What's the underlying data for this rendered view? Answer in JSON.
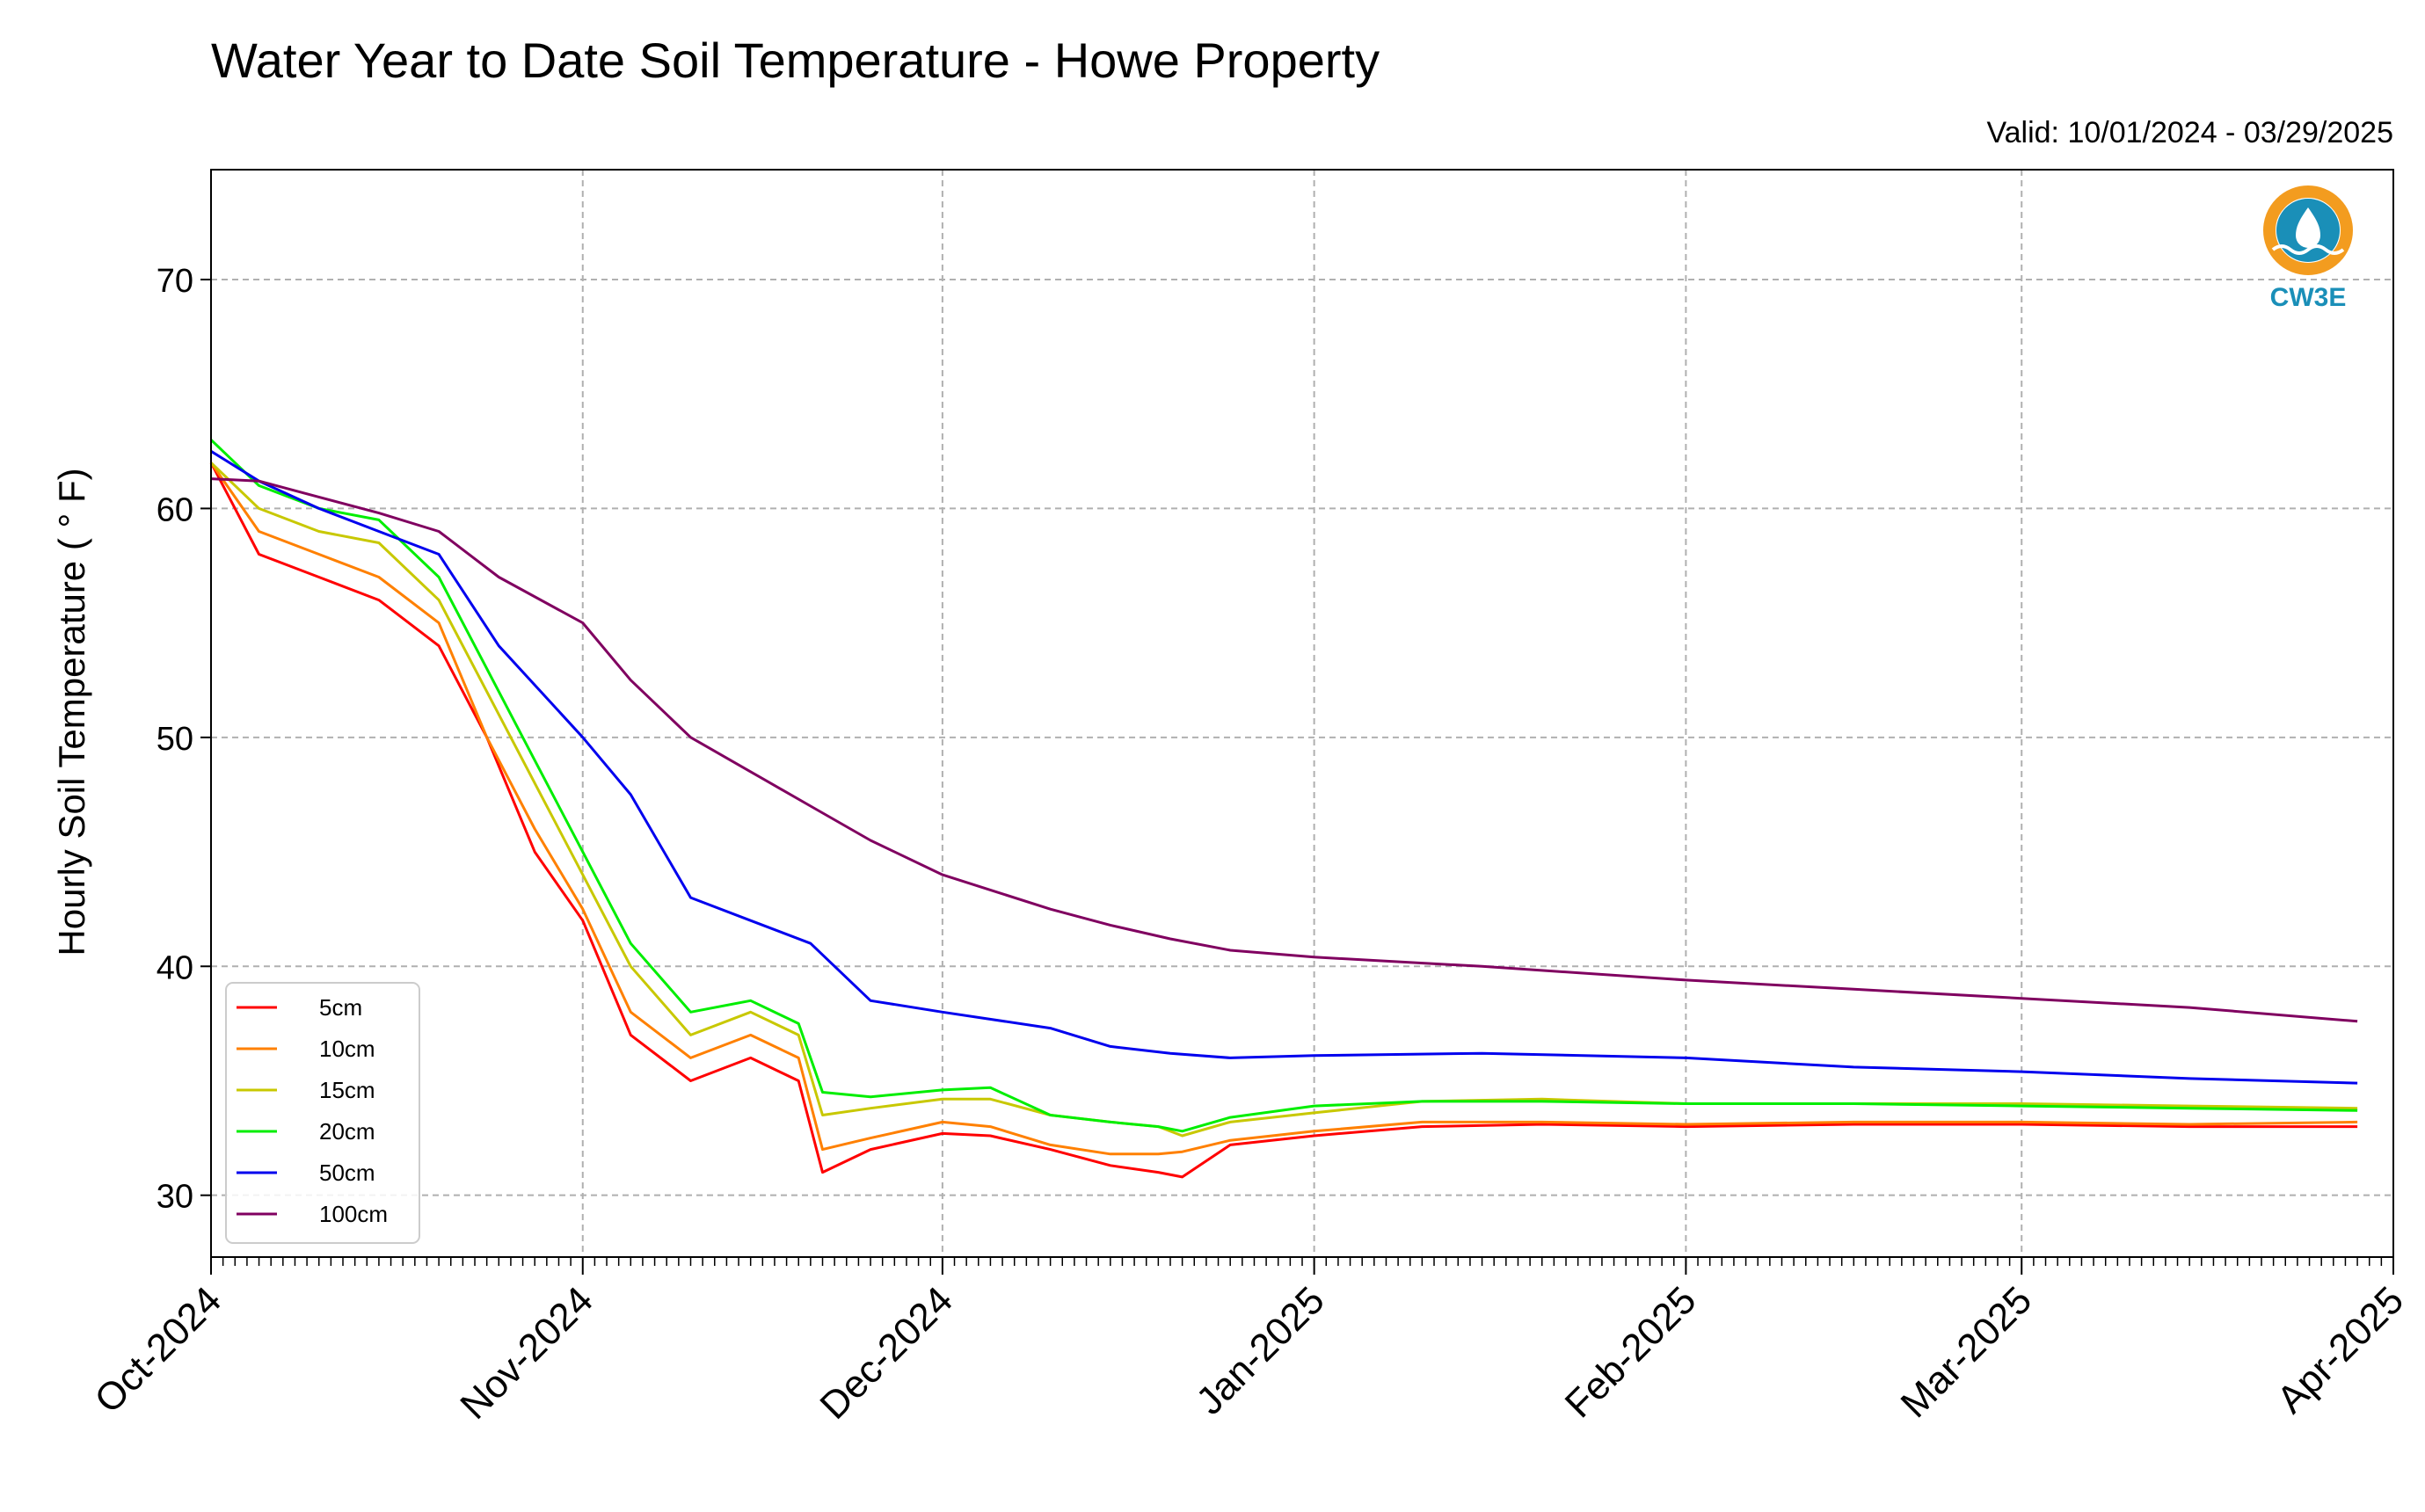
{
  "chart_data": {
    "type": "line",
    "title": "Water Year to Date Soil Temperature - Howe Property",
    "subtitle": "Valid: 10/01/2024 - 03/29/2025",
    "ylabel": "Hourly Soil Temperature ( ° F)",
    "xlabel": "",
    "ylim": [
      27.3,
      74.8
    ],
    "yticks": [
      30,
      40,
      50,
      60,
      70
    ],
    "xlim": [
      "2024-10-01",
      "2025-04-01"
    ],
    "xticks": [
      {
        "date": "2024-10-01",
        "label": "Oct-2024"
      },
      {
        "date": "2024-11-01",
        "label": "Nov-2024"
      },
      {
        "date": "2024-12-01",
        "label": "Dec-2024"
      },
      {
        "date": "2025-01-01",
        "label": "Jan-2025"
      },
      {
        "date": "2025-02-01",
        "label": "Feb-2025"
      },
      {
        "date": "2025-03-01",
        "label": "Mar-2025"
      },
      {
        "date": "2025-04-01",
        "label": "Apr-2025"
      }
    ],
    "grid": true,
    "legend_position": "bottom-left",
    "series": [
      {
        "name": "5cm",
        "color": "#ff0000",
        "x": [
          "2024-10-01",
          "2024-10-05",
          "2024-10-10",
          "2024-10-15",
          "2024-10-20",
          "2024-10-24",
          "2024-10-28",
          "2024-11-01",
          "2024-11-05",
          "2024-11-10",
          "2024-11-15",
          "2024-11-19",
          "2024-11-21",
          "2024-11-25",
          "2024-12-01",
          "2024-12-05",
          "2024-12-10",
          "2024-12-15",
          "2024-12-19",
          "2024-12-21",
          "2024-12-25",
          "2025-01-01",
          "2025-01-10",
          "2025-01-20",
          "2025-02-01",
          "2025-02-15",
          "2025-03-01",
          "2025-03-15",
          "2025-03-29"
        ],
        "y": [
          62,
          58,
          57,
          56,
          54,
          50,
          45,
          42,
          37,
          35,
          36,
          35,
          31,
          32,
          32.7,
          32.6,
          32,
          31.3,
          31,
          30.8,
          32.2,
          32.6,
          33.0,
          33.1,
          33.0,
          33.1,
          33.1,
          33.0,
          33.0
        ]
      },
      {
        "name": "10cm",
        "color": "#ff8000",
        "x": [
          "2024-10-01",
          "2024-10-05",
          "2024-10-10",
          "2024-10-15",
          "2024-10-20",
          "2024-10-24",
          "2024-10-28",
          "2024-11-01",
          "2024-11-05",
          "2024-11-10",
          "2024-11-15",
          "2024-11-19",
          "2024-11-21",
          "2024-11-25",
          "2024-12-01",
          "2024-12-05",
          "2024-12-10",
          "2024-12-15",
          "2024-12-19",
          "2024-12-21",
          "2024-12-25",
          "2025-01-01",
          "2025-01-10",
          "2025-01-20",
          "2025-02-01",
          "2025-02-15",
          "2025-03-01",
          "2025-03-15",
          "2025-03-29"
        ],
        "y": [
          62,
          59,
          58,
          57,
          55,
          50,
          46,
          42.5,
          38,
          36,
          37,
          36,
          32,
          32.5,
          33.2,
          33,
          32.2,
          31.8,
          31.8,
          31.9,
          32.4,
          32.8,
          33.2,
          33.2,
          33.1,
          33.2,
          33.2,
          33.1,
          33.2
        ]
      },
      {
        "name": "15cm",
        "color": "#c8c800",
        "x": [
          "2024-10-01",
          "2024-10-05",
          "2024-10-10",
          "2024-10-15",
          "2024-10-20",
          "2024-10-24",
          "2024-10-28",
          "2024-11-01",
          "2024-11-05",
          "2024-11-10",
          "2024-11-15",
          "2024-11-19",
          "2024-11-21",
          "2024-11-25",
          "2024-12-01",
          "2024-12-05",
          "2024-12-10",
          "2024-12-15",
          "2024-12-19",
          "2024-12-21",
          "2024-12-25",
          "2025-01-01",
          "2025-01-10",
          "2025-01-20",
          "2025-02-01",
          "2025-02-15",
          "2025-03-01",
          "2025-03-15",
          "2025-03-29"
        ],
        "y": [
          62,
          60,
          59,
          58.5,
          56,
          52,
          48,
          44,
          40,
          37,
          38,
          37,
          33.5,
          33.8,
          34.2,
          34.2,
          33.5,
          33.2,
          33.0,
          32.6,
          33.2,
          33.6,
          34.1,
          34.2,
          34.0,
          34.0,
          34.0,
          33.9,
          33.8
        ]
      },
      {
        "name": "20cm",
        "color": "#00ee00",
        "x": [
          "2024-10-01",
          "2024-10-05",
          "2024-10-10",
          "2024-10-15",
          "2024-10-20",
          "2024-10-24",
          "2024-10-28",
          "2024-11-01",
          "2024-11-05",
          "2024-11-10",
          "2024-11-15",
          "2024-11-19",
          "2024-11-21",
          "2024-11-25",
          "2024-12-01",
          "2024-12-05",
          "2024-12-10",
          "2024-12-15",
          "2024-12-19",
          "2024-12-21",
          "2024-12-25",
          "2025-01-01",
          "2025-01-10",
          "2025-01-20",
          "2025-02-01",
          "2025-02-15",
          "2025-03-01",
          "2025-03-15",
          "2025-03-29"
        ],
        "y": [
          63,
          61,
          60,
          59.5,
          57,
          53,
          49,
          45,
          41,
          38,
          38.5,
          37.5,
          34.5,
          34.3,
          34.6,
          34.7,
          33.5,
          33.2,
          33.0,
          32.8,
          33.4,
          33.9,
          34.1,
          34.1,
          34.0,
          34.0,
          33.9,
          33.8,
          33.7
        ]
      },
      {
        "name": "50cm",
        "color": "#0000ee",
        "x": [
          "2024-10-01",
          "2024-10-05",
          "2024-10-10",
          "2024-10-15",
          "2024-10-20",
          "2024-10-25",
          "2024-11-01",
          "2024-11-05",
          "2024-11-10",
          "2024-11-15",
          "2024-11-20",
          "2024-11-25",
          "2024-12-01",
          "2024-12-10",
          "2024-12-15",
          "2024-12-20",
          "2024-12-25",
          "2025-01-01",
          "2025-01-15",
          "2025-02-01",
          "2025-02-15",
          "2025-03-01",
          "2025-03-15",
          "2025-03-29"
        ],
        "y": [
          62.5,
          61.2,
          60,
          59,
          58,
          54,
          50,
          47.5,
          43,
          42,
          41,
          38.5,
          38,
          37.3,
          36.5,
          36.2,
          36.0,
          36.1,
          36.2,
          36.0,
          35.6,
          35.4,
          35.1,
          34.9
        ]
      },
      {
        "name": "100cm",
        "color": "#800060",
        "x": [
          "2024-10-01",
          "2024-10-05",
          "2024-10-10",
          "2024-10-15",
          "2024-10-20",
          "2024-10-25",
          "2024-11-01",
          "2024-11-05",
          "2024-11-10",
          "2024-11-15",
          "2024-11-20",
          "2024-11-25",
          "2024-12-01",
          "2024-12-10",
          "2024-12-15",
          "2024-12-20",
          "2024-12-25",
          "2025-01-01",
          "2025-01-15",
          "2025-02-01",
          "2025-02-15",
          "2025-03-01",
          "2025-03-15",
          "2025-03-29"
        ],
        "y": [
          61.3,
          61.2,
          60.5,
          59.8,
          59.0,
          57.0,
          55.0,
          52.5,
          50,
          48.5,
          47,
          45.5,
          44,
          42.5,
          41.8,
          41.2,
          40.7,
          40.4,
          40,
          39.4,
          39.0,
          38.6,
          38.2,
          37.6
        ]
      }
    ]
  },
  "logo": {
    "text": "CW3E",
    "ring_color": "#f39c1f",
    "wave_color": "#1a8fb8"
  }
}
